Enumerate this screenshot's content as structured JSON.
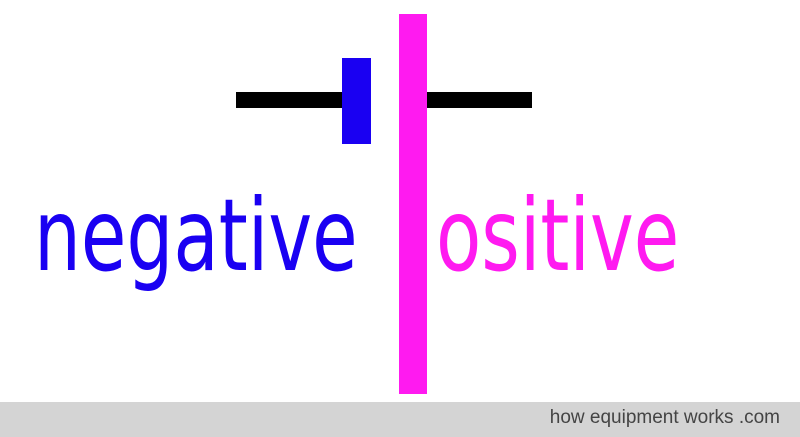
{
  "colors": {
    "negative": "#1a00f2",
    "positive": "#ff1af0",
    "lead": "#000000",
    "footer_bar": "#d4d4d4",
    "footer_text": "#444444"
  },
  "labels": {
    "negative": "negative",
    "positive": "ositive"
  },
  "footer": {
    "text": "how equipment works .com"
  }
}
